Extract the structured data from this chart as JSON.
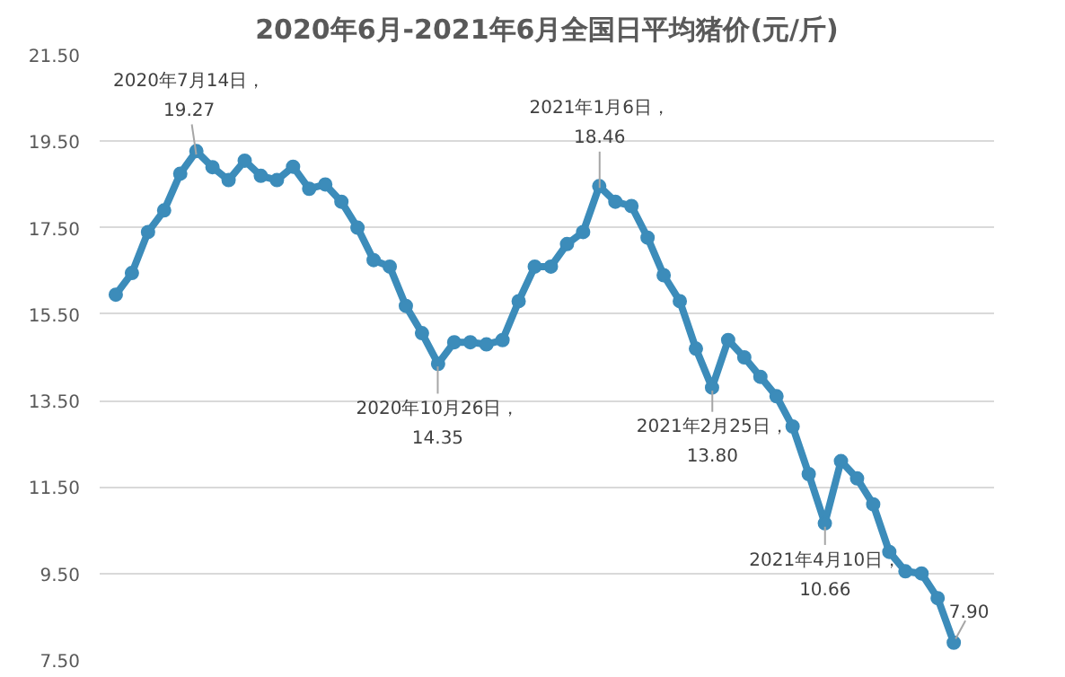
{
  "chart_data": {
    "type": "line",
    "title": "2020年6月-2021年6月全国日平均猪价(元/斤)",
    "categories": [
      null,
      null,
      null,
      null,
      null,
      null,
      null,
      null,
      null,
      null,
      null,
      null,
      null,
      null,
      null,
      null,
      null,
      null,
      null,
      null,
      null,
      null,
      null,
      null,
      null,
      null,
      null,
      null,
      null,
      null,
      null,
      null,
      null,
      null,
      null,
      null,
      null,
      null,
      null,
      null,
      null,
      null,
      null,
      null,
      null,
      null,
      null,
      null,
      null,
      null,
      null,
      null,
      null
    ],
    "series": [
      {
        "color": "#3c8cba",
        "values": [
          15.95,
          16.45,
          17.4,
          17.9,
          18.75,
          19.27,
          18.9,
          18.6,
          19.05,
          18.7,
          18.6,
          18.91,
          18.4,
          18.5,
          18.1,
          17.5,
          16.75,
          16.6,
          15.69,
          15.06,
          14.35,
          14.85,
          14.85,
          14.8,
          14.9,
          15.8,
          16.6,
          16.6,
          17.12,
          17.4,
          18.46,
          18.1,
          18.0,
          17.27,
          16.4,
          15.8,
          14.7,
          13.8,
          14.9,
          14.5,
          14.05,
          13.6,
          12.9,
          11.8,
          10.66,
          12.1,
          11.7,
          11.1,
          10.0,
          9.55,
          9.5,
          8.93,
          7.9
        ]
      }
    ],
    "ylim": [
      7.5,
      21.5
    ],
    "yticks": [
      {
        "value": 7.5,
        "label": "7.50"
      },
      {
        "value": 9.5,
        "label": "9.50"
      },
      {
        "value": 11.5,
        "label": "11.50"
      },
      {
        "value": 13.5,
        "label": "13.50"
      },
      {
        "value": 15.5,
        "label": "15.50"
      },
      {
        "value": 17.5,
        "label": "17.50"
      },
      {
        "value": 19.5,
        "label": "19.50"
      },
      {
        "value": 21.5,
        "label": "21.50"
      }
    ],
    "tick_labels": "y",
    "grid": "y",
    "marker": "circle",
    "annotations": [
      "2020年7月14日，\n19.27",
      "2020年10月26日，\n14.35",
      "2021年1月6日，\n18.46",
      "2021年2月25日，\n13.80",
      "2021年4月10日，\n10.66",
      "7.90"
    ]
  }
}
